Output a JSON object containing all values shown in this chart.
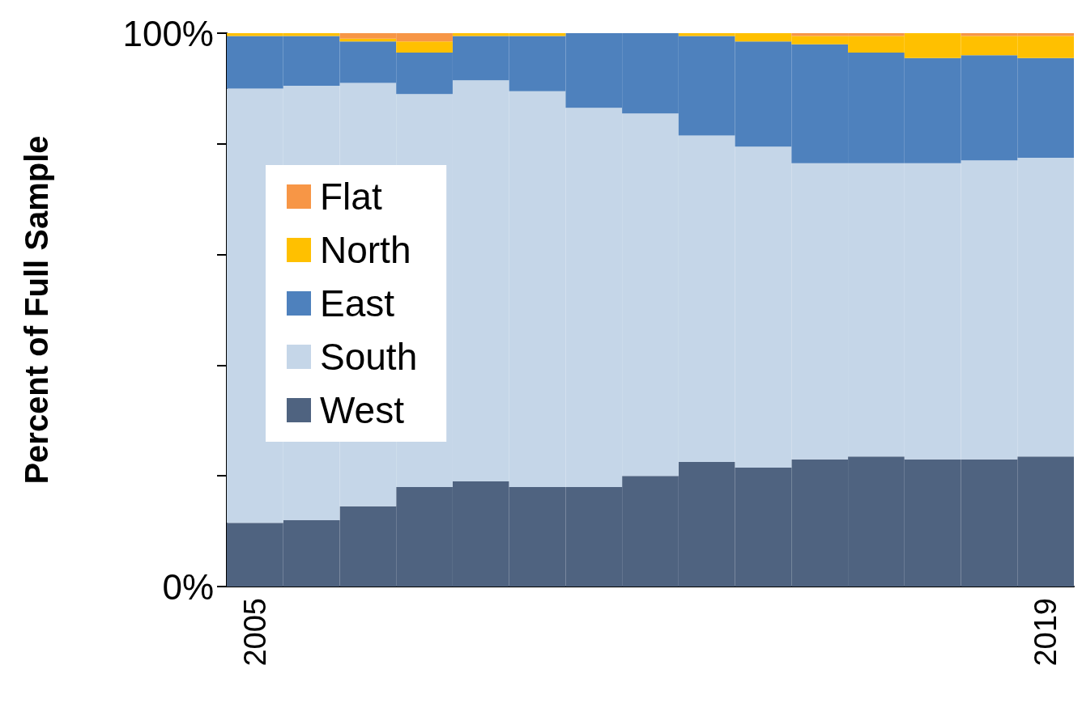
{
  "chart_data": {
    "type": "bar",
    "stacked": true,
    "ylabel": "Percent of Full Sample",
    "categories": [
      "2005",
      null,
      null,
      null,
      null,
      null,
      null,
      null,
      null,
      null,
      null,
      null,
      null,
      null,
      "2019"
    ],
    "series": [
      {
        "name": "West",
        "color": "#4f6380",
        "values": [
          11.5,
          12,
          14.5,
          18,
          19,
          18,
          18,
          20,
          22.5,
          21.5,
          23,
          23.5,
          23,
          23,
          23.5
        ]
      },
      {
        "name": "South",
        "color": "#c5d6e8",
        "values": [
          78.5,
          78.5,
          76.5,
          71,
          72.5,
          71.5,
          68.5,
          65.5,
          59,
          58,
          53.5,
          53,
          53.5,
          54,
          54
        ]
      },
      {
        "name": "East",
        "color": "#4e81bd",
        "values": [
          9.5,
          9,
          7.5,
          7.5,
          8,
          10,
          13.5,
          14.5,
          18,
          19,
          21.5,
          20,
          19,
          19,
          18
        ]
      },
      {
        "name": "North",
        "color": "#ffc000",
        "values": [
          0.5,
          0.5,
          0.5,
          2,
          0.5,
          0.5,
          0,
          0,
          0.5,
          1.5,
          1.5,
          3,
          4.5,
          3.5,
          4
        ]
      },
      {
        "name": "Flat",
        "color": "#f79646",
        "values": [
          0,
          0,
          1,
          1.5,
          0,
          0,
          0,
          0,
          0,
          0,
          0.5,
          0.5,
          0,
          0.5,
          0.5
        ]
      }
    ],
    "ylim": [
      0,
      100
    ],
    "yticks": [
      {
        "value": 0,
        "label": "0%"
      },
      {
        "value": 20,
        "label": null
      },
      {
        "value": 40,
        "label": null
      },
      {
        "value": 60,
        "label": null
      },
      {
        "value": 80,
        "label": null
      },
      {
        "value": 100,
        "label": "100%"
      }
    ],
    "grid": false,
    "legend": "left"
  }
}
